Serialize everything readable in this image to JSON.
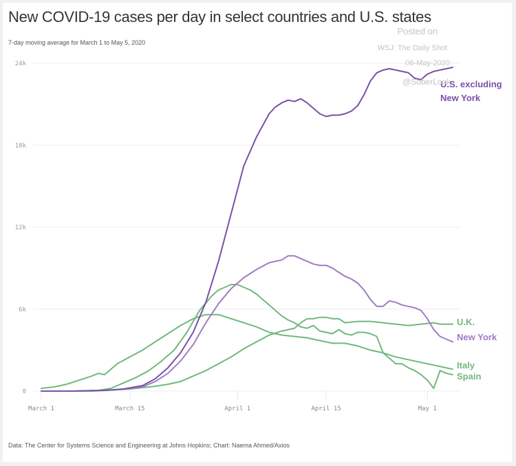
{
  "header": {
    "title": "New COVID-19 cases per day in select countries and U.S. states",
    "subtitle": "7-day moving average for March 1 to May 5, 2020"
  },
  "watermark": {
    "line1": "Posted on",
    "line2": "WSJ: The Daily Shot",
    "line3": "06-May-2020",
    "line4": "@SoberLook"
  },
  "footer": {
    "source": "Data: The Center for Systems Science and Engineering at Johns Hopkins; Chart: Naema Ahmed/Axios"
  },
  "colors": {
    "purple_dark": "#7a4fa8",
    "purple_light": "#9f7cc2",
    "green": "#6fb87c",
    "grid": "#eeeeee"
  },
  "chart_data": {
    "type": "line",
    "title": "New COVID-19 cases per day in select countries and U.S. states",
    "subtitle": "7-day moving average for March 1 to May 5, 2020",
    "xlabel": "",
    "ylabel": "",
    "x_unit": "days since March 1, 2020",
    "xlim": [
      0,
      65
    ],
    "ylim": [
      0,
      24000
    ],
    "grid": true,
    "y_ticks": [
      {
        "value": 0,
        "label": "0"
      },
      {
        "value": 6000,
        "label": "6k"
      },
      {
        "value": 12000,
        "label": "12k"
      },
      {
        "value": 18000,
        "label": "18k"
      },
      {
        "value": 24000,
        "label": "24k"
      }
    ],
    "x_ticks": [
      {
        "value": 0,
        "label": "March 1"
      },
      {
        "value": 14,
        "label": "March 15"
      },
      {
        "value": 31,
        "label": "April 1"
      },
      {
        "value": 45,
        "label": "April 15"
      },
      {
        "value": 61,
        "label": "May 1"
      }
    ],
    "legend": "inline-right",
    "series": [
      {
        "name": "U.S. excluding New York",
        "label_lines": [
          "U.S. excluding",
          "New York"
        ],
        "color": "#7a4fa8",
        "x": [
          0,
          5,
          10,
          13,
          16,
          18,
          20,
          22,
          24,
          26,
          28,
          30,
          32,
          34,
          36,
          37,
          38,
          39,
          40,
          41,
          42,
          43,
          44,
          45,
          46,
          47,
          48,
          49,
          50,
          51,
          52,
          53,
          54,
          55,
          56,
          57,
          58,
          59,
          60,
          61,
          62,
          63,
          64,
          65
        ],
        "y": [
          0,
          0,
          50,
          150,
          400,
          900,
          1700,
          2800,
          4300,
          6500,
          9500,
          13000,
          16500,
          18600,
          20300,
          20800,
          21100,
          21300,
          21200,
          21400,
          21100,
          20700,
          20300,
          20100,
          20200,
          20200,
          20300,
          20500,
          20900,
          21700,
          22700,
          23300,
          23500,
          23600,
          23500,
          23400,
          23300,
          22900,
          22800,
          23200,
          23400,
          23500,
          23600,
          23700
        ]
      },
      {
        "name": "New York",
        "label_lines": [
          "New York"
        ],
        "color": "#9f7cc2",
        "x": [
          0,
          5,
          10,
          13,
          16,
          18,
          20,
          22,
          24,
          26,
          28,
          30,
          32,
          34,
          36,
          38,
          39,
          40,
          41,
          42,
          43,
          44,
          45,
          46,
          47,
          48,
          49,
          50,
          51,
          52,
          53,
          54,
          55,
          56,
          57,
          58,
          59,
          60,
          61,
          62,
          63,
          64,
          65
        ],
        "y": [
          0,
          0,
          50,
          150,
          300,
          700,
          1300,
          2200,
          3400,
          5000,
          6400,
          7500,
          8300,
          8900,
          9400,
          9600,
          9900,
          9900,
          9700,
          9500,
          9300,
          9200,
          9200,
          9000,
          8700,
          8400,
          8200,
          7900,
          7400,
          6700,
          6200,
          6200,
          6600,
          6500,
          6300,
          6200,
          6100,
          5900,
          5300,
          4500,
          4000,
          3800,
          3600
        ]
      },
      {
        "name": "Spain",
        "label_lines": [
          "Spain"
        ],
        "color": "#6fb87c",
        "x": [
          0,
          5,
          9,
          11,
          13,
          15,
          17,
          19,
          21,
          23,
          25,
          27,
          28,
          29,
          30,
          31,
          32,
          33,
          34,
          35,
          36,
          37,
          38,
          39,
          40,
          41,
          42,
          43,
          44,
          45,
          46,
          47,
          48,
          49,
          50,
          51,
          52,
          53,
          54,
          55,
          56,
          57,
          58,
          59,
          60,
          61,
          62,
          63,
          64,
          65
        ],
        "y": [
          0,
          0,
          50,
          200,
          600,
          1000,
          1500,
          2200,
          3000,
          4300,
          5900,
          7000,
          7400,
          7600,
          7800,
          7800,
          7600,
          7400,
          7100,
          6700,
          6300,
          5900,
          5500,
          5200,
          5000,
          4700,
          4600,
          4800,
          4400,
          4300,
          4200,
          4500,
          4200,
          4100,
          4300,
          4300,
          4200,
          4000,
          2800,
          2400,
          2000,
          2000,
          1700,
          1500,
          1200,
          800,
          200,
          1500,
          1300,
          1200
        ]
      },
      {
        "name": "Italy",
        "label_lines": [
          "Italy"
        ],
        "color": "#6fb87c",
        "x": [
          0,
          2,
          4,
          6,
          8,
          9,
          10,
          11,
          12,
          14,
          16,
          18,
          20,
          22,
          24,
          26,
          28,
          30,
          32,
          34,
          36,
          38,
          40,
          42,
          44,
          46,
          48,
          50,
          52,
          54,
          56,
          58,
          60,
          62,
          65
        ],
        "y": [
          200,
          300,
          500,
          800,
          1100,
          1300,
          1200,
          1600,
          2000,
          2500,
          3000,
          3600,
          4200,
          4800,
          5300,
          5600,
          5600,
          5300,
          5000,
          4700,
          4300,
          4100,
          4000,
          3900,
          3700,
          3500,
          3500,
          3300,
          3000,
          2800,
          2500,
          2300,
          2100,
          1900,
          1600
        ]
      },
      {
        "name": "U.K.",
        "label_lines": [
          "U.K."
        ],
        "color": "#6fb87c",
        "x": [
          0,
          8,
          10,
          12,
          14,
          16,
          18,
          20,
          22,
          24,
          26,
          28,
          30,
          32,
          34,
          36,
          38,
          40,
          41,
          42,
          43,
          44,
          45,
          46,
          47,
          48,
          50,
          52,
          54,
          56,
          58,
          60,
          62,
          63,
          65
        ],
        "y": [
          0,
          0,
          50,
          100,
          150,
          250,
          350,
          500,
          700,
          1100,
          1500,
          2000,
          2500,
          3100,
          3600,
          4100,
          4400,
          4600,
          5000,
          5300,
          5300,
          5400,
          5400,
          5300,
          5300,
          5000,
          5100,
          5100,
          5000,
          4900,
          4800,
          4900,
          5000,
          4900,
          4900
        ]
      }
    ]
  }
}
